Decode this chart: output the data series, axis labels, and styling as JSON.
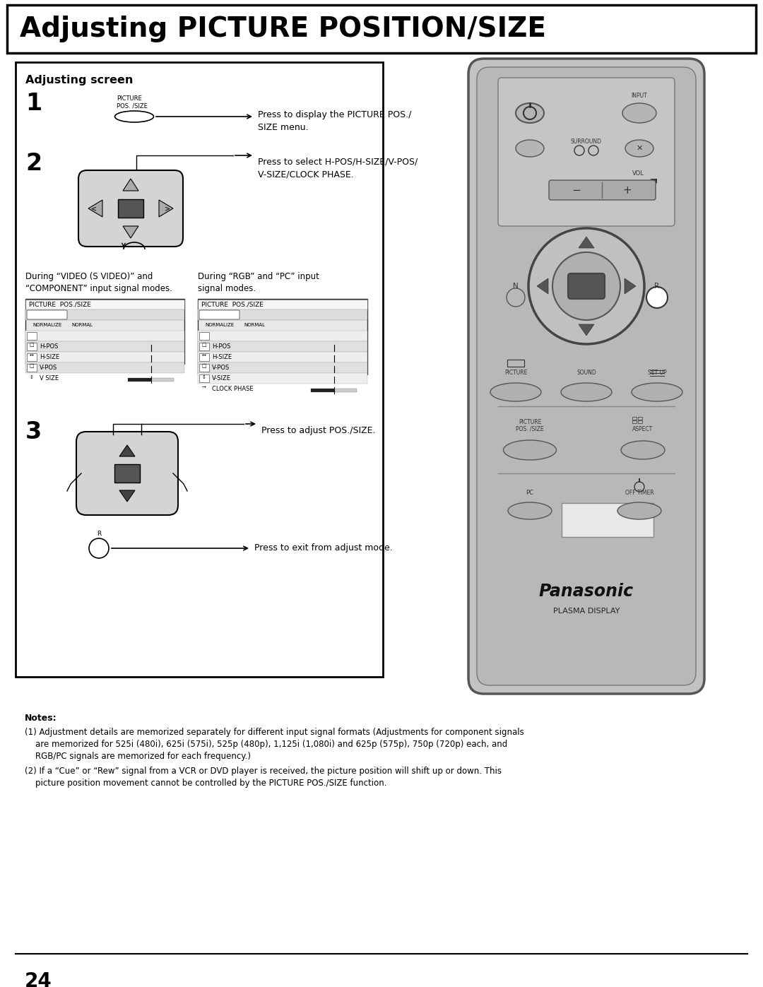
{
  "title": "Adjusting PICTURE POSITION/SIZE",
  "page_number": "24",
  "section_title": "Adjusting screen",
  "step1_label": "1",
  "step1_button_label": "PICTURE\nPOS. /SIZE",
  "step1_text": "Press to display the PICTURE POS./\nSIZE menu.",
  "step2_label": "2",
  "step2_text": "Press to select H-POS/H-SIZE/V-POS/\nV-SIZE/CLOCK PHASE.",
  "step3_label": "3",
  "step3_text": "Press to adjust POS./SIZE.",
  "step4_text": "Press to exit from adjust mode.",
  "caption1_title": "During “VIDEO (S VIDEO)” and\n“COMPONENT” input signal modes.",
  "caption2_title": "During “RGB” and “PC” input\nsignal modes.",
  "menu1_title": "PICTURE  POS./SIZE",
  "menu2_title": "PICTURE  POS./SIZE",
  "note_title": "Notes:",
  "note1": "(1) Adjustment details are memorized separately for different input signal formats (Adjustments for component signals\n    are memorized for 525i (480i), 625i (575i), 525p (480p), 1,125i (1,080i) and 625p (575p), 750p (720p) each, and\n    RGB/PC signals are memorized for each frequency.)",
  "note2": "(2) If a “Cue” or “Rew” signal from a VCR or DVD player is received, the picture position will shift up or down. This\n    picture position movement cannot be controlled by the PICTURE POS./SIZE function.",
  "bg_color": "#ffffff",
  "border_color": "#000000",
  "remote_body_color": "#c0c0c0",
  "remote_dark": "#a0a0a0",
  "remote_btn_color": "#b0b0b0",
  "remote_btn_dark": "#909090",
  "gray_light": "#d4d4d4",
  "gray_mid": "#aaaaaa",
  "gray_dark": "#888888"
}
